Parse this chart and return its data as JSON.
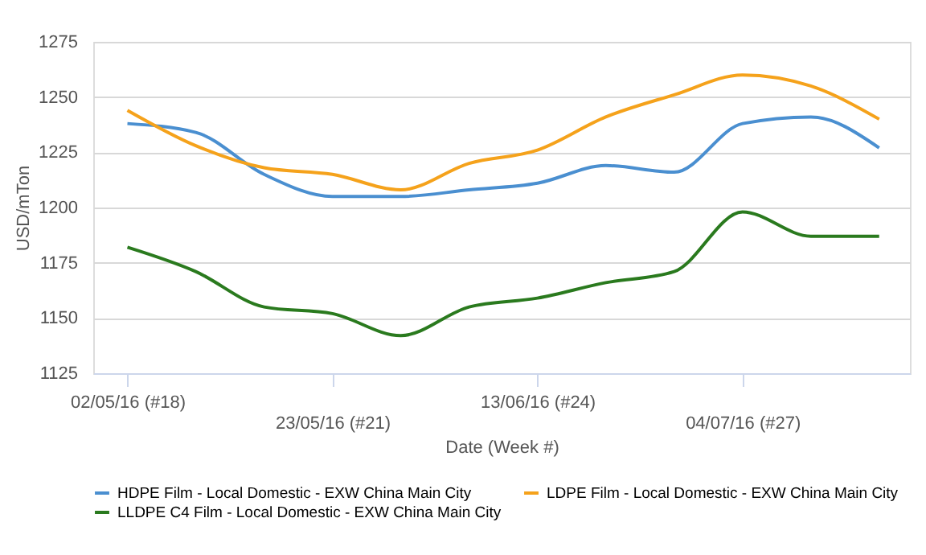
{
  "chart_data": {
    "type": "line",
    "xlabel": "Date (Week #)",
    "ylabel": "USD/mTon",
    "categories": [
      "02/05/16 (#18)",
      null,
      null,
      "23/05/16 (#21)",
      null,
      null,
      "13/06/16 (#24)",
      null,
      null,
      "04/07/16 (#27)",
      null,
      null
    ],
    "series": [
      {
        "name": "HDPE Film - Local Domestic - EXW China Main City",
        "color": "#4a8fd0",
        "values": [
          1238,
          1234,
          1215,
          1205,
          1205,
          1208,
          1211,
          1219,
          1216,
          1238,
          1241,
          1227
        ]
      },
      {
        "name": "LDPE Film - Local Domestic - EXW China Main City",
        "color": "#f5a21b",
        "values": [
          1244,
          1228,
          1218,
          1215,
          1208,
          1220,
          1226,
          1241,
          1251,
          1260,
          1255,
          1240
        ]
      },
      {
        "name": "LLDPE C4 Film - Local Domestic - EXW China Main City",
        "color": "#2a7a1e",
        "values": [
          1182,
          1171,
          1155,
          1152,
          1142,
          1155,
          1159,
          1166,
          1171,
          1198,
          1187,
          1187
        ]
      }
    ],
    "ylim": [
      1125,
      1275
    ],
    "yticks": [
      1125,
      1150,
      1175,
      1200,
      1225,
      1250,
      1275
    ],
    "grid": "y",
    "legend": "bottom",
    "marker": "none",
    "line_style": "solid"
  }
}
